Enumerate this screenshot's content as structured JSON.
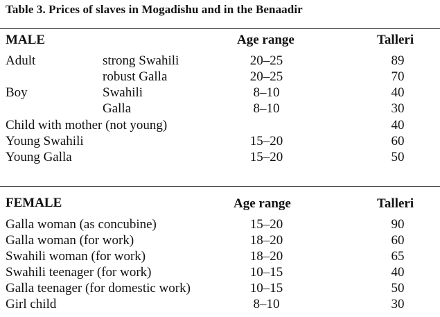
{
  "title": "Table 3. Prices of slaves in Mogadishu and in the Benaadir",
  "male": {
    "heading": "MALE",
    "age_header": "Age range",
    "price_header": "Talleri",
    "rows": [
      {
        "category": "Adult",
        "description": "strong Swahili",
        "age": "20–25",
        "price": "89"
      },
      {
        "category": "",
        "description": "robust Galla",
        "age": "20–25",
        "price": "70"
      },
      {
        "category": "Boy",
        "description": "Swahili",
        "age": "8–10",
        "price": "40"
      },
      {
        "category": "",
        "description": "Galla",
        "age": "8–10",
        "price": "30"
      },
      {
        "category": "Child with mother (not young)",
        "description": "",
        "age": "",
        "price": "40"
      },
      {
        "category": "Young Swahili",
        "description": "",
        "age": "15–20",
        "price": "60"
      },
      {
        "category": "Young Galla",
        "description": "",
        "age": "15–20",
        "price": "50"
      }
    ]
  },
  "female": {
    "heading": "FEMALE",
    "age_header": "Age range",
    "price_header": "Talleri",
    "rows": [
      {
        "category": "Galla woman (as concubine)",
        "age": "15–20",
        "price": "90"
      },
      {
        "category": "Galla woman (for work)",
        "age": "18–20",
        "price": "60"
      },
      {
        "category": "Swahili woman (for work)",
        "age": "18–20",
        "price": "65"
      },
      {
        "category": "Swahili teenager (for work)",
        "age": "10–15",
        "price": "40"
      },
      {
        "category": "Galla teenager (for domestic work)",
        "age": "10–15",
        "price": "50"
      },
      {
        "category": "Girl child",
        "age": "8–10",
        "price": "30"
      }
    ]
  }
}
